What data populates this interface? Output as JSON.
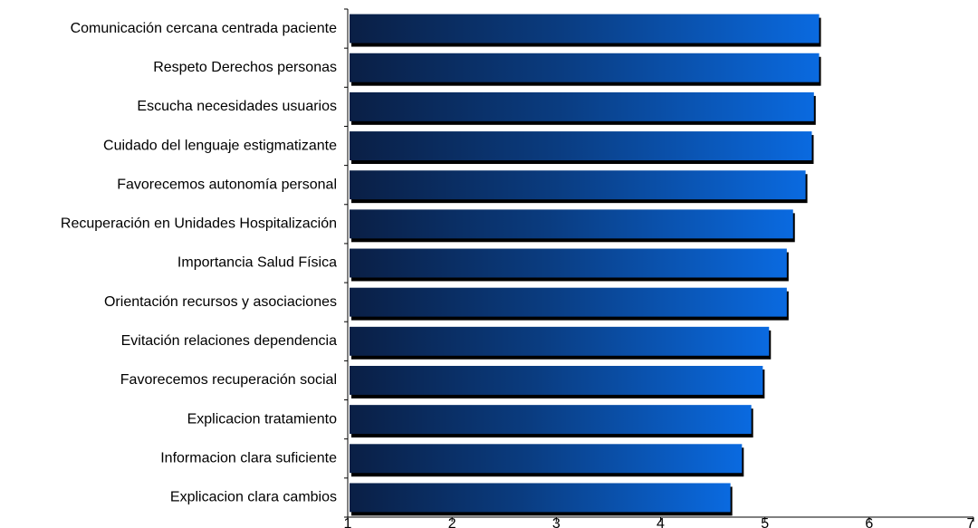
{
  "chart_data": {
    "type": "bar",
    "orientation": "horizontal",
    "categories": [
      "Comunicación cercana centrada paciente",
      "Respeto Derechos personas",
      "Escucha necesidades usuarios",
      "Cuidado del lenguaje estigmatizante",
      "Favorecemos autonomía personal",
      "Recuperación en Unidades Hospitalización",
      "Importancia Salud Física",
      "Orientación recursos y asociaciones",
      "Evitación relaciones dependencia",
      "Favorecemos recuperación social",
      "Explicacion tratamiento",
      "Informacion clara suficiente",
      "Explicacion clara cambios"
    ],
    "values": [
      5.52,
      5.52,
      5.47,
      5.45,
      5.39,
      5.27,
      5.21,
      5.21,
      5.04,
      4.98,
      4.87,
      4.78,
      4.67
    ],
    "xlim": [
      1,
      7
    ],
    "xticks": [
      "1",
      "2",
      "3",
      "4",
      "5",
      "6",
      "7"
    ],
    "title": "",
    "xlabel": "",
    "ylabel": "",
    "grid": false,
    "legend": "none",
    "colors": {
      "bar_dark": "#0a1f45",
      "bar_mid": "#0a3c80",
      "bar_light": "#0a6ae0",
      "bar_shadow": "#000000",
      "axis": "#000000"
    }
  }
}
